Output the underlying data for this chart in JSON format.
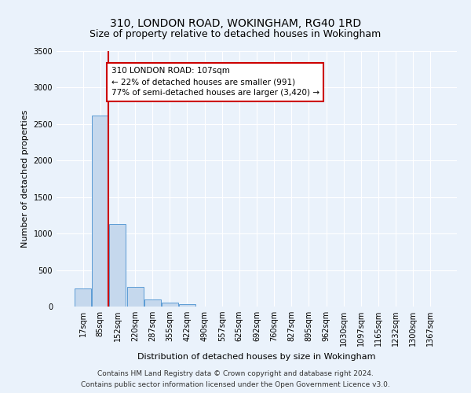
{
  "title1": "310, LONDON ROAD, WOKINGHAM, RG40 1RD",
  "title2": "Size of property relative to detached houses in Wokingham",
  "xlabel": "Distribution of detached houses by size in Wokingham",
  "ylabel": "Number of detached properties",
  "footnote1": "Contains HM Land Registry data © Crown copyright and database right 2024.",
  "footnote2": "Contains public sector information licensed under the Open Government Licence v3.0.",
  "annotation_line1": "310 LONDON ROAD: 107sqm",
  "annotation_line2": "← 22% of detached houses are smaller (991)",
  "annotation_line3": "77% of semi-detached houses are larger (3,420) →",
  "bar_categories": [
    "17sqm",
    "85sqm",
    "152sqm",
    "220sqm",
    "287sqm",
    "355sqm",
    "422sqm",
    "490sqm",
    "557sqm",
    "625sqm",
    "692sqm",
    "760sqm",
    "827sqm",
    "895sqm",
    "962sqm",
    "1030sqm",
    "1097sqm",
    "1165sqm",
    "1232sqm",
    "1300sqm",
    "1367sqm"
  ],
  "bar_values": [
    250,
    2620,
    1130,
    270,
    100,
    50,
    30,
    0,
    0,
    0,
    0,
    0,
    0,
    0,
    0,
    0,
    0,
    0,
    0,
    0,
    0
  ],
  "bar_color": "#c5d8ed",
  "bar_edge_color": "#5b9bd5",
  "red_line_x": 1.47,
  "ylim": [
    0,
    3500
  ],
  "yticks": [
    0,
    500,
    1000,
    1500,
    2000,
    2500,
    3000,
    3500
  ],
  "bg_color": "#eaf2fb",
  "plot_bg_color": "#eaf2fb",
  "grid_color": "#ffffff",
  "annotation_box_facecolor": "#ffffff",
  "annotation_border_color": "#cc0000",
  "title_fontsize": 10,
  "subtitle_fontsize": 9,
  "axis_label_fontsize": 8,
  "tick_fontsize": 7,
  "footnote_fontsize": 6.5,
  "annotation_fontsize": 7.5
}
